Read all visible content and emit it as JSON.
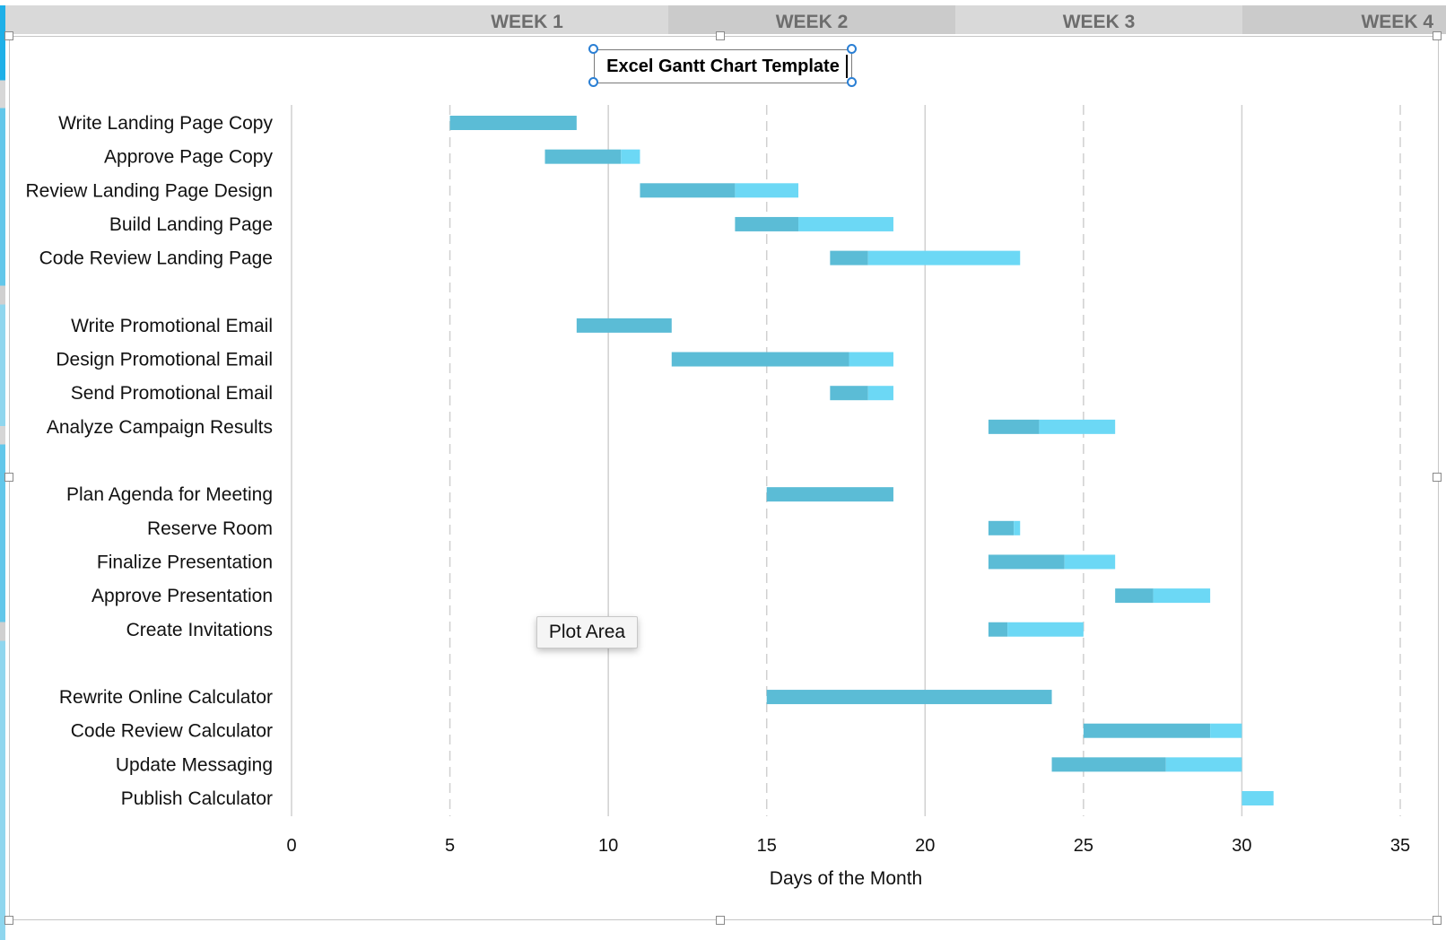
{
  "weeks": [
    "WEEK 1",
    "WEEK 2",
    "WEEK 3",
    "WEEK 4"
  ],
  "tooltip": "Plot Area",
  "colors": {
    "completed": "#5bbcd6",
    "remaining": "#6cd8f5",
    "gridline": "#d0d0d0",
    "header_bg": "#d9d9d9",
    "header_dark": "#cbcbcb",
    "selection": "#2a7fd4"
  },
  "chart_data": {
    "type": "bar",
    "orientation": "horizontal",
    "stacked": true,
    "title": "Excel Gantt Chart Template",
    "xlabel": "Days of the Month",
    "ylabel": "",
    "xlim": [
      0,
      35
    ],
    "xticks": [
      0,
      5,
      10,
      15,
      20,
      25,
      30,
      35
    ],
    "grid": true,
    "tasks": [
      {
        "name": "Write Landing Page Copy",
        "start": 5,
        "completed": 4,
        "remaining": 0
      },
      {
        "name": "Approve Page Copy",
        "start": 8,
        "completed": 2.4,
        "remaining": 0.6
      },
      {
        "name": "Review Landing Page Design",
        "start": 11,
        "completed": 3,
        "remaining": 2
      },
      {
        "name": "Build Landing Page",
        "start": 14,
        "completed": 2,
        "remaining": 3
      },
      {
        "name": "Code Review Landing Page",
        "start": 17,
        "completed": 1.2,
        "remaining": 4.8
      },
      {
        "name": "",
        "start": null,
        "completed": 0,
        "remaining": 0
      },
      {
        "name": "Write Promotional Email",
        "start": 9,
        "completed": 3,
        "remaining": 0
      },
      {
        "name": "Design Promotional Email",
        "start": 12,
        "completed": 5.6,
        "remaining": 1.4
      },
      {
        "name": "Send Promotional Email",
        "start": 17,
        "completed": 1.2,
        "remaining": 0.8
      },
      {
        "name": "Analyze Campaign Results",
        "start": 22,
        "completed": 1.6,
        "remaining": 2.4
      },
      {
        "name": "",
        "start": null,
        "completed": 0,
        "remaining": 0
      },
      {
        "name": "Plan Agenda for Meeting",
        "start": 15,
        "completed": 4,
        "remaining": 0
      },
      {
        "name": "Reserve Room",
        "start": 22,
        "completed": 0.8,
        "remaining": 0.2
      },
      {
        "name": "Finalize Presentation",
        "start": 22,
        "completed": 2.4,
        "remaining": 1.6
      },
      {
        "name": "Approve Presentation",
        "start": 26,
        "completed": 1.2,
        "remaining": 1.8
      },
      {
        "name": "Create Invitations",
        "start": 22,
        "completed": 0.6,
        "remaining": 2.4
      },
      {
        "name": "",
        "start": null,
        "completed": 0,
        "remaining": 0
      },
      {
        "name": "Rewrite Online Calculator",
        "start": 15,
        "completed": 9,
        "remaining": 0
      },
      {
        "name": "Code Review Calculator",
        "start": 25,
        "completed": 4,
        "remaining": 1
      },
      {
        "name": "Update Messaging",
        "start": 24,
        "completed": 3.6,
        "remaining": 2.4
      },
      {
        "name": "Publish Calculator",
        "start": 30,
        "completed": 0,
        "remaining": 1
      }
    ]
  }
}
